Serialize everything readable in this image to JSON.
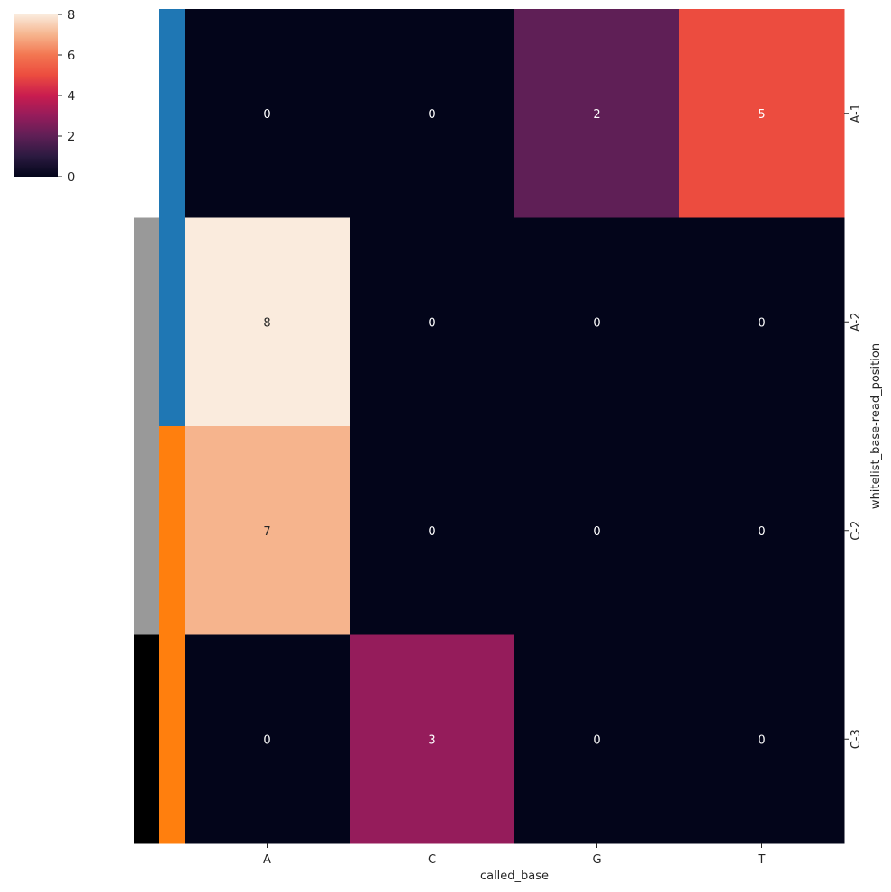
{
  "chart_data": {
    "type": "heatmap",
    "xlabel": "called_base",
    "ylabel": "whitelist_base-read_position",
    "x_categories": [
      "A",
      "C",
      "G",
      "T"
    ],
    "y_categories": [
      "A-1",
      "A-2",
      "C-2",
      "C-3"
    ],
    "values": [
      [
        0,
        0,
        2,
        5
      ],
      [
        8,
        0,
        0,
        0
      ],
      [
        7,
        0,
        0,
        0
      ],
      [
        0,
        3,
        0,
        0
      ]
    ],
    "annotations": true,
    "color_scale": {
      "colormap": "rocket",
      "vmin": 0,
      "vmax": 8,
      "ticks": [
        0,
        2,
        4,
        6,
        8
      ],
      "tick_labels": [
        "0",
        "2",
        "4",
        "6",
        "8"
      ],
      "placement": "top-left"
    },
    "row_colors": [
      [
        "#ffffff",
        "#1f77b4"
      ],
      [
        "#999999",
        "#1f77b4"
      ],
      [
        "#999999",
        "#ff7f0e"
      ],
      [
        "#000000",
        "#ff7f0e"
      ]
    ],
    "grid": false
  }
}
